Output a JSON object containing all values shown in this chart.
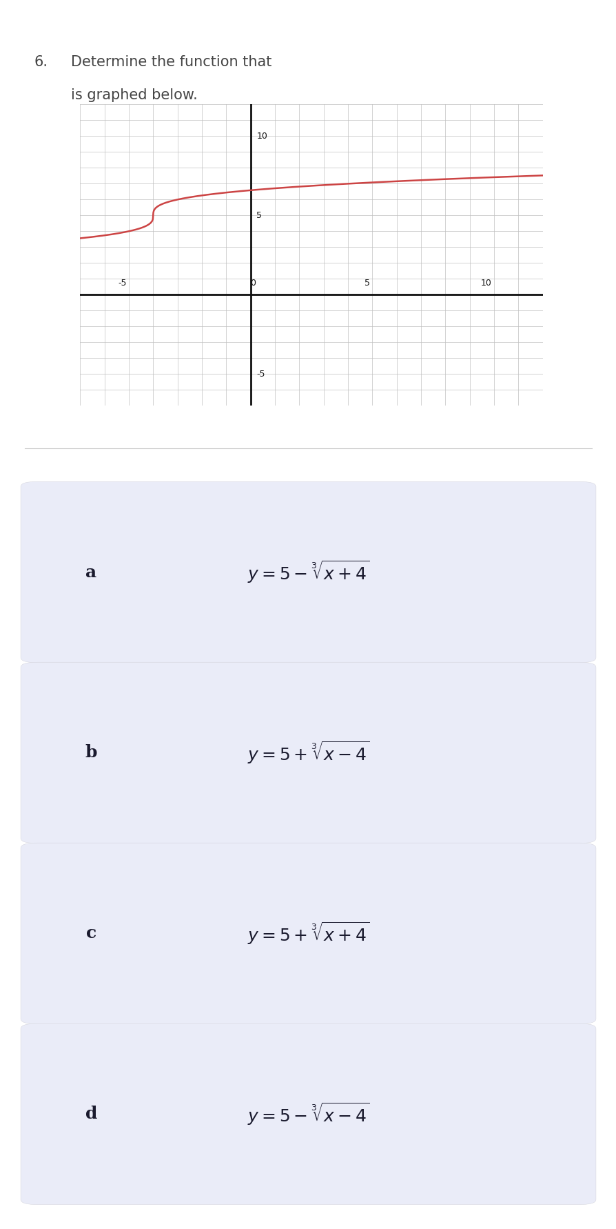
{
  "title_number": "6.",
  "title_line1": "Determine the function that",
  "title_line2": "is graphed below.",
  "title_fontsize": 15,
  "title_color": "#444444",
  "graph_xlim": [
    -7,
    12
  ],
  "graph_ylim": [
    -7,
    12
  ],
  "xtick_major": [
    -5,
    0,
    5,
    10
  ],
  "ytick_major": [
    -5,
    5,
    10
  ],
  "xtick_minor_step": 1,
  "ytick_minor_step": 1,
  "curve_color": "#cc4444",
  "curve_linewidth": 1.8,
  "axis_color": "#111111",
  "grid_color": "#c0c0c0",
  "grid_linewidth": 0.5,
  "background_color": "#ffffff",
  "answer_box_color": "#eaecf8",
  "answer_text_color": "#1a1a2e",
  "choice_labels": [
    "a",
    "b",
    "c",
    "d"
  ],
  "choice_label_fontsize": 18,
  "choice_formula_fontsize": 18,
  "fig_width": 8.95,
  "fig_height": 17.82
}
